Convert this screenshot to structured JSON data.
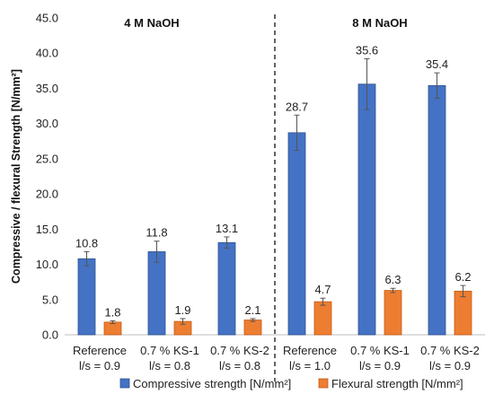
{
  "chart_data": {
    "type": "bar",
    "ylabel": "Compressive / flexural Strength [N/mm²]",
    "ylim": [
      0,
      45
    ],
    "yticks": [
      "0.0",
      "5.0",
      "10.0",
      "15.0",
      "20.0",
      "25.0",
      "30.0",
      "35.0",
      "40.0",
      "45.0"
    ],
    "grid": false,
    "legend_position": "bottom",
    "groups": [
      {
        "title": "4 M NaOH",
        "category_indices": [
          0,
          1,
          2
        ]
      },
      {
        "title": "8 M NaOH",
        "category_indices": [
          3,
          4,
          5
        ]
      }
    ],
    "categories": [
      {
        "line1": "Reference",
        "line2": "l/s = 0.9"
      },
      {
        "line1": "0.7 % KS-1",
        "line2": "l/s = 0.8"
      },
      {
        "line1": "0.7 % KS-2",
        "line2": "l/s = 0.8"
      },
      {
        "line1": "Reference",
        "line2": "l/s = 1.0"
      },
      {
        "line1": "0.7 % KS-1",
        "line2": "l/s = 0.9"
      },
      {
        "line1": "0.7 % KS-2",
        "line2": "l/s = 0.9"
      }
    ],
    "series": [
      {
        "name": "Compressive strength [N/mm²]",
        "color": "#4472C4",
        "values": [
          10.8,
          11.8,
          13.1,
          28.7,
          35.6,
          35.4
        ],
        "labels": [
          "10.8",
          "11.8",
          "13.1",
          "28.7",
          "35.6",
          "35.4"
        ],
        "errors": [
          1.0,
          1.5,
          0.8,
          2.5,
          3.6,
          1.8
        ]
      },
      {
        "name": "Flexural strength [N/mm²]",
        "color": "#ED7D31",
        "values": [
          1.8,
          1.9,
          2.1,
          4.7,
          6.3,
          6.2
        ],
        "labels": [
          "1.8",
          "1.9",
          "2.1",
          "4.7",
          "6.3",
          "6.2"
        ],
        "errors": [
          0.2,
          0.4,
          0.2,
          0.5,
          0.3,
          0.8
        ]
      }
    ]
  }
}
